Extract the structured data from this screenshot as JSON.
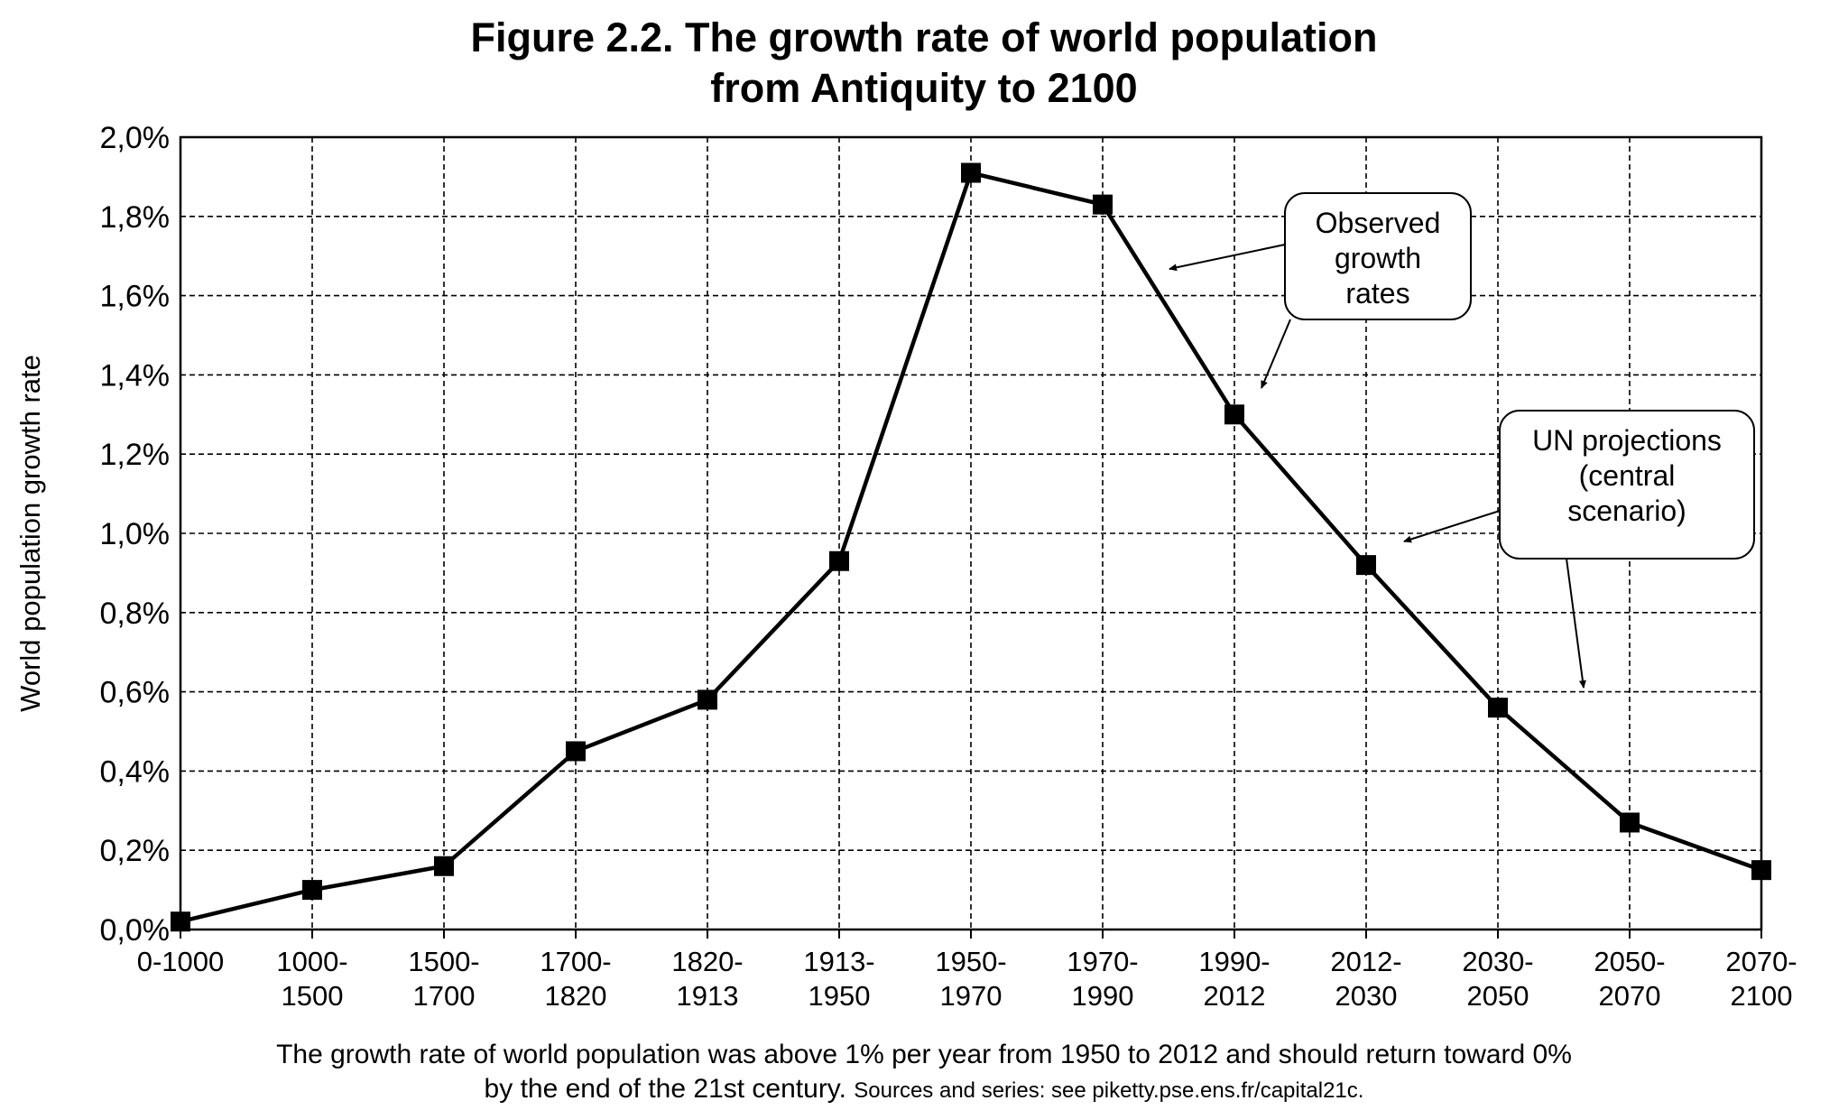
{
  "title_line1": "Figure 2.2. The growth rate of world population",
  "title_line2": "from Antiquity to 2100",
  "chart_data": {
    "type": "line",
    "ylabel": "World population growth rate",
    "xlabel": "",
    "ylim": [
      0,
      0.02
    ],
    "yticks": [
      "0,0%",
      "0,2%",
      "0,4%",
      "0,6%",
      "0,8%",
      "1,0%",
      "1,2%",
      "1,4%",
      "1,6%",
      "1,8%",
      "2,0%"
    ],
    "categories": [
      [
        "0-1000",
        ""
      ],
      [
        "1000-",
        "1500"
      ],
      [
        "1500-",
        "1700"
      ],
      [
        "1700-",
        "1820"
      ],
      [
        "1820-",
        "1913"
      ],
      [
        "1913-",
        "1950"
      ],
      [
        "1950-",
        "1970"
      ],
      [
        "1970-",
        "1990"
      ],
      [
        "1990-",
        "2012"
      ],
      [
        "2012-",
        "2030"
      ],
      [
        "2030-",
        "2050"
      ],
      [
        "2050-",
        "2070"
      ],
      [
        "2070-",
        "2100"
      ]
    ],
    "values": [
      0.0002,
      0.001,
      0.0016,
      0.0045,
      0.0058,
      0.0093,
      0.0191,
      0.0183,
      0.013,
      0.0092,
      0.0056,
      0.0027,
      0.0015
    ],
    "grid": true,
    "marker": "square",
    "annotations": [
      {
        "lines": [
          "Observed",
          "growth",
          "rates"
        ]
      },
      {
        "lines": [
          "UN  projections",
          "(central",
          "scenario)"
        ]
      }
    ]
  },
  "caption_main": "The growth rate of world population was above 1% per year from 1950 to 2012 and should return toward 0%",
  "caption_second": "by the end of the 21st century.",
  "caption_sources": "Sources and series: see piketty.pse.ens.fr/capital21c."
}
